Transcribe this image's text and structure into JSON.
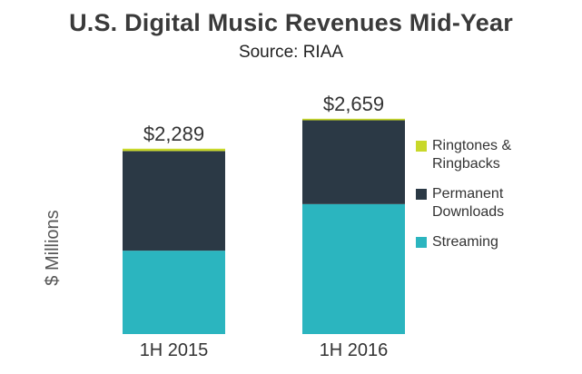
{
  "chart_data": {
    "type": "bar",
    "stacked": true,
    "title": "U.S. Digital Music Revenues Mid-Year",
    "subtitle": "Source: RIAA",
    "ylabel": "$ Millions",
    "categories": [
      "1H 2015",
      "1H 2016"
    ],
    "totals_labels": [
      "$2,289",
      "$2,659"
    ],
    "totals": [
      2289,
      2659
    ],
    "series": [
      {
        "name": "Streaming",
        "values": [
          1030,
          1605
        ],
        "color": "#2bb5bf"
      },
      {
        "name": "Permanent Downloads",
        "values": [
          1230,
          1035
        ],
        "color": "#2b3945"
      },
      {
        "name": "Ringtones & Ringbacks",
        "values": [
          29,
          19
        ],
        "color": "#c8d82a"
      }
    ],
    "legend_order": [
      "Ringtones & Ringbacks",
      "Permanent Downloads",
      "Streaming"
    ],
    "legend_labels": {
      "Ringtones & Ringbacks": [
        "Ringtones &",
        "Ringbacks"
      ],
      "Permanent Downloads": [
        "Permanent",
        "Downloads"
      ],
      "Streaming": [
        "Streaming"
      ]
    },
    "ylim": [
      0,
      2800
    ],
    "grid": false,
    "legend_position": "right"
  }
}
